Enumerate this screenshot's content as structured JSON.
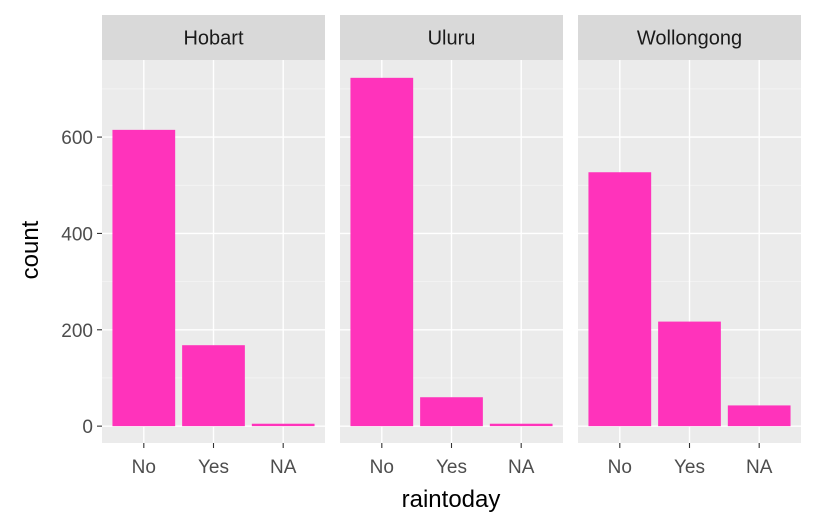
{
  "chart_data": {
    "type": "bar",
    "facet_variable": "location",
    "categories": [
      "No",
      "Yes",
      "NA"
    ],
    "panels": [
      {
        "name": "Hobart",
        "values": [
          615,
          168,
          5
        ]
      },
      {
        "name": "Uluru",
        "values": [
          723,
          60,
          5
        ]
      },
      {
        "name": "Wollongong",
        "values": [
          527,
          217,
          43
        ]
      }
    ],
    "xlabel": "raintoday",
    "ylabel": "count",
    "ylim": [
      -35,
      760
    ],
    "yticks": [
      0,
      200,
      400,
      600
    ],
    "bar_color": "#FF33BB",
    "panel_background": "#EBEBEB",
    "strip_background": "#D9D9D9",
    "grid": true
  }
}
